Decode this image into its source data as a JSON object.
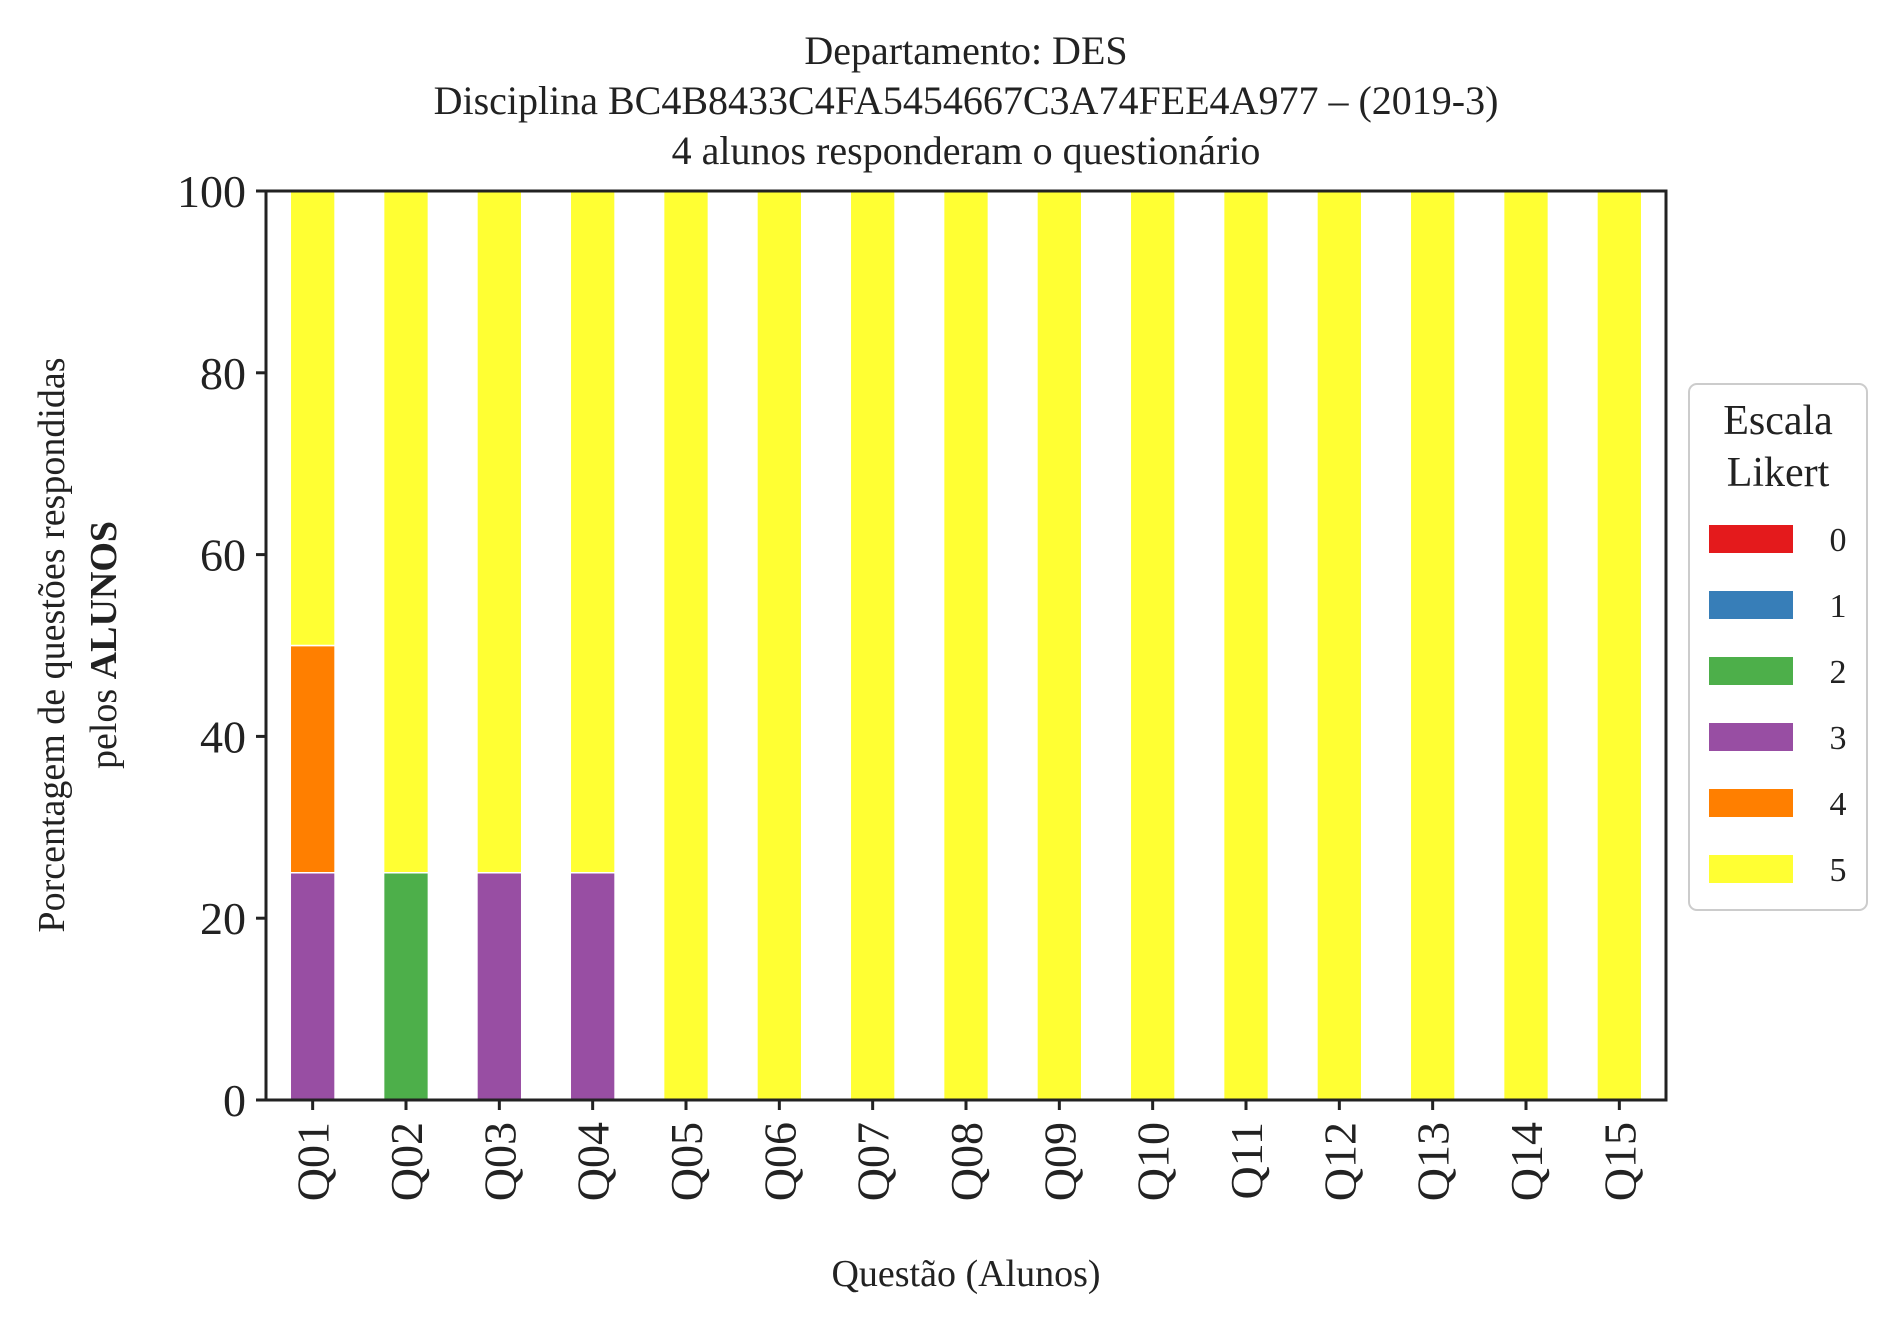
{
  "chart_data": {
    "type": "bar",
    "stacked": true,
    "title": "Departamento: DES",
    "subtitle": "Disciplina BC4B8433C4FA5454667C3A74FEE4A977 – (2019-3)",
    "subtitle2": "4 alunos responderam o questionário",
    "xlabel": "Questão (Alunos)",
    "ylabel_line1": "Porcentagem de questões respondidas",
    "ylabel_line2_prefix": "pelos ",
    "ylabel_line2_bold": "ALUNOS",
    "ylim": [
      0,
      100
    ],
    "yticks": [
      "0",
      "20",
      "40",
      "60",
      "80",
      "100"
    ],
    "categories": [
      "Q01",
      "Q02",
      "Q03",
      "Q04",
      "Q05",
      "Q06",
      "Q07",
      "Q08",
      "Q09",
      "Q10",
      "Q11",
      "Q12",
      "Q13",
      "Q14",
      "Q15"
    ],
    "series": [
      {
        "name": "0",
        "color": "#e41a1c",
        "values": [
          0,
          0,
          0,
          0,
          0,
          0,
          0,
          0,
          0,
          0,
          0,
          0,
          0,
          0,
          0
        ]
      },
      {
        "name": "1",
        "color": "#377eb8",
        "values": [
          0,
          0,
          0,
          0,
          0,
          0,
          0,
          0,
          0,
          0,
          0,
          0,
          0,
          0,
          0
        ]
      },
      {
        "name": "2",
        "color": "#4daf4a",
        "values": [
          0,
          25,
          0,
          0,
          0,
          0,
          0,
          0,
          0,
          0,
          0,
          0,
          0,
          0,
          0
        ]
      },
      {
        "name": "3",
        "color": "#984ea3",
        "values": [
          25,
          0,
          25,
          25,
          0,
          0,
          0,
          0,
          0,
          0,
          0,
          0,
          0,
          0,
          0
        ]
      },
      {
        "name": "4",
        "color": "#ff7f00",
        "values": [
          25,
          0,
          0,
          0,
          0,
          0,
          0,
          0,
          0,
          0,
          0,
          0,
          0,
          0,
          0
        ]
      },
      {
        "name": "5",
        "color": "#ffff33",
        "values": [
          50,
          75,
          75,
          75,
          100,
          100,
          100,
          100,
          100,
          100,
          100,
          100,
          100,
          100,
          100
        ]
      }
    ],
    "legend": {
      "title_line1": "Escala",
      "title_line2": "Likert",
      "placement": "right"
    },
    "grid": false
  }
}
